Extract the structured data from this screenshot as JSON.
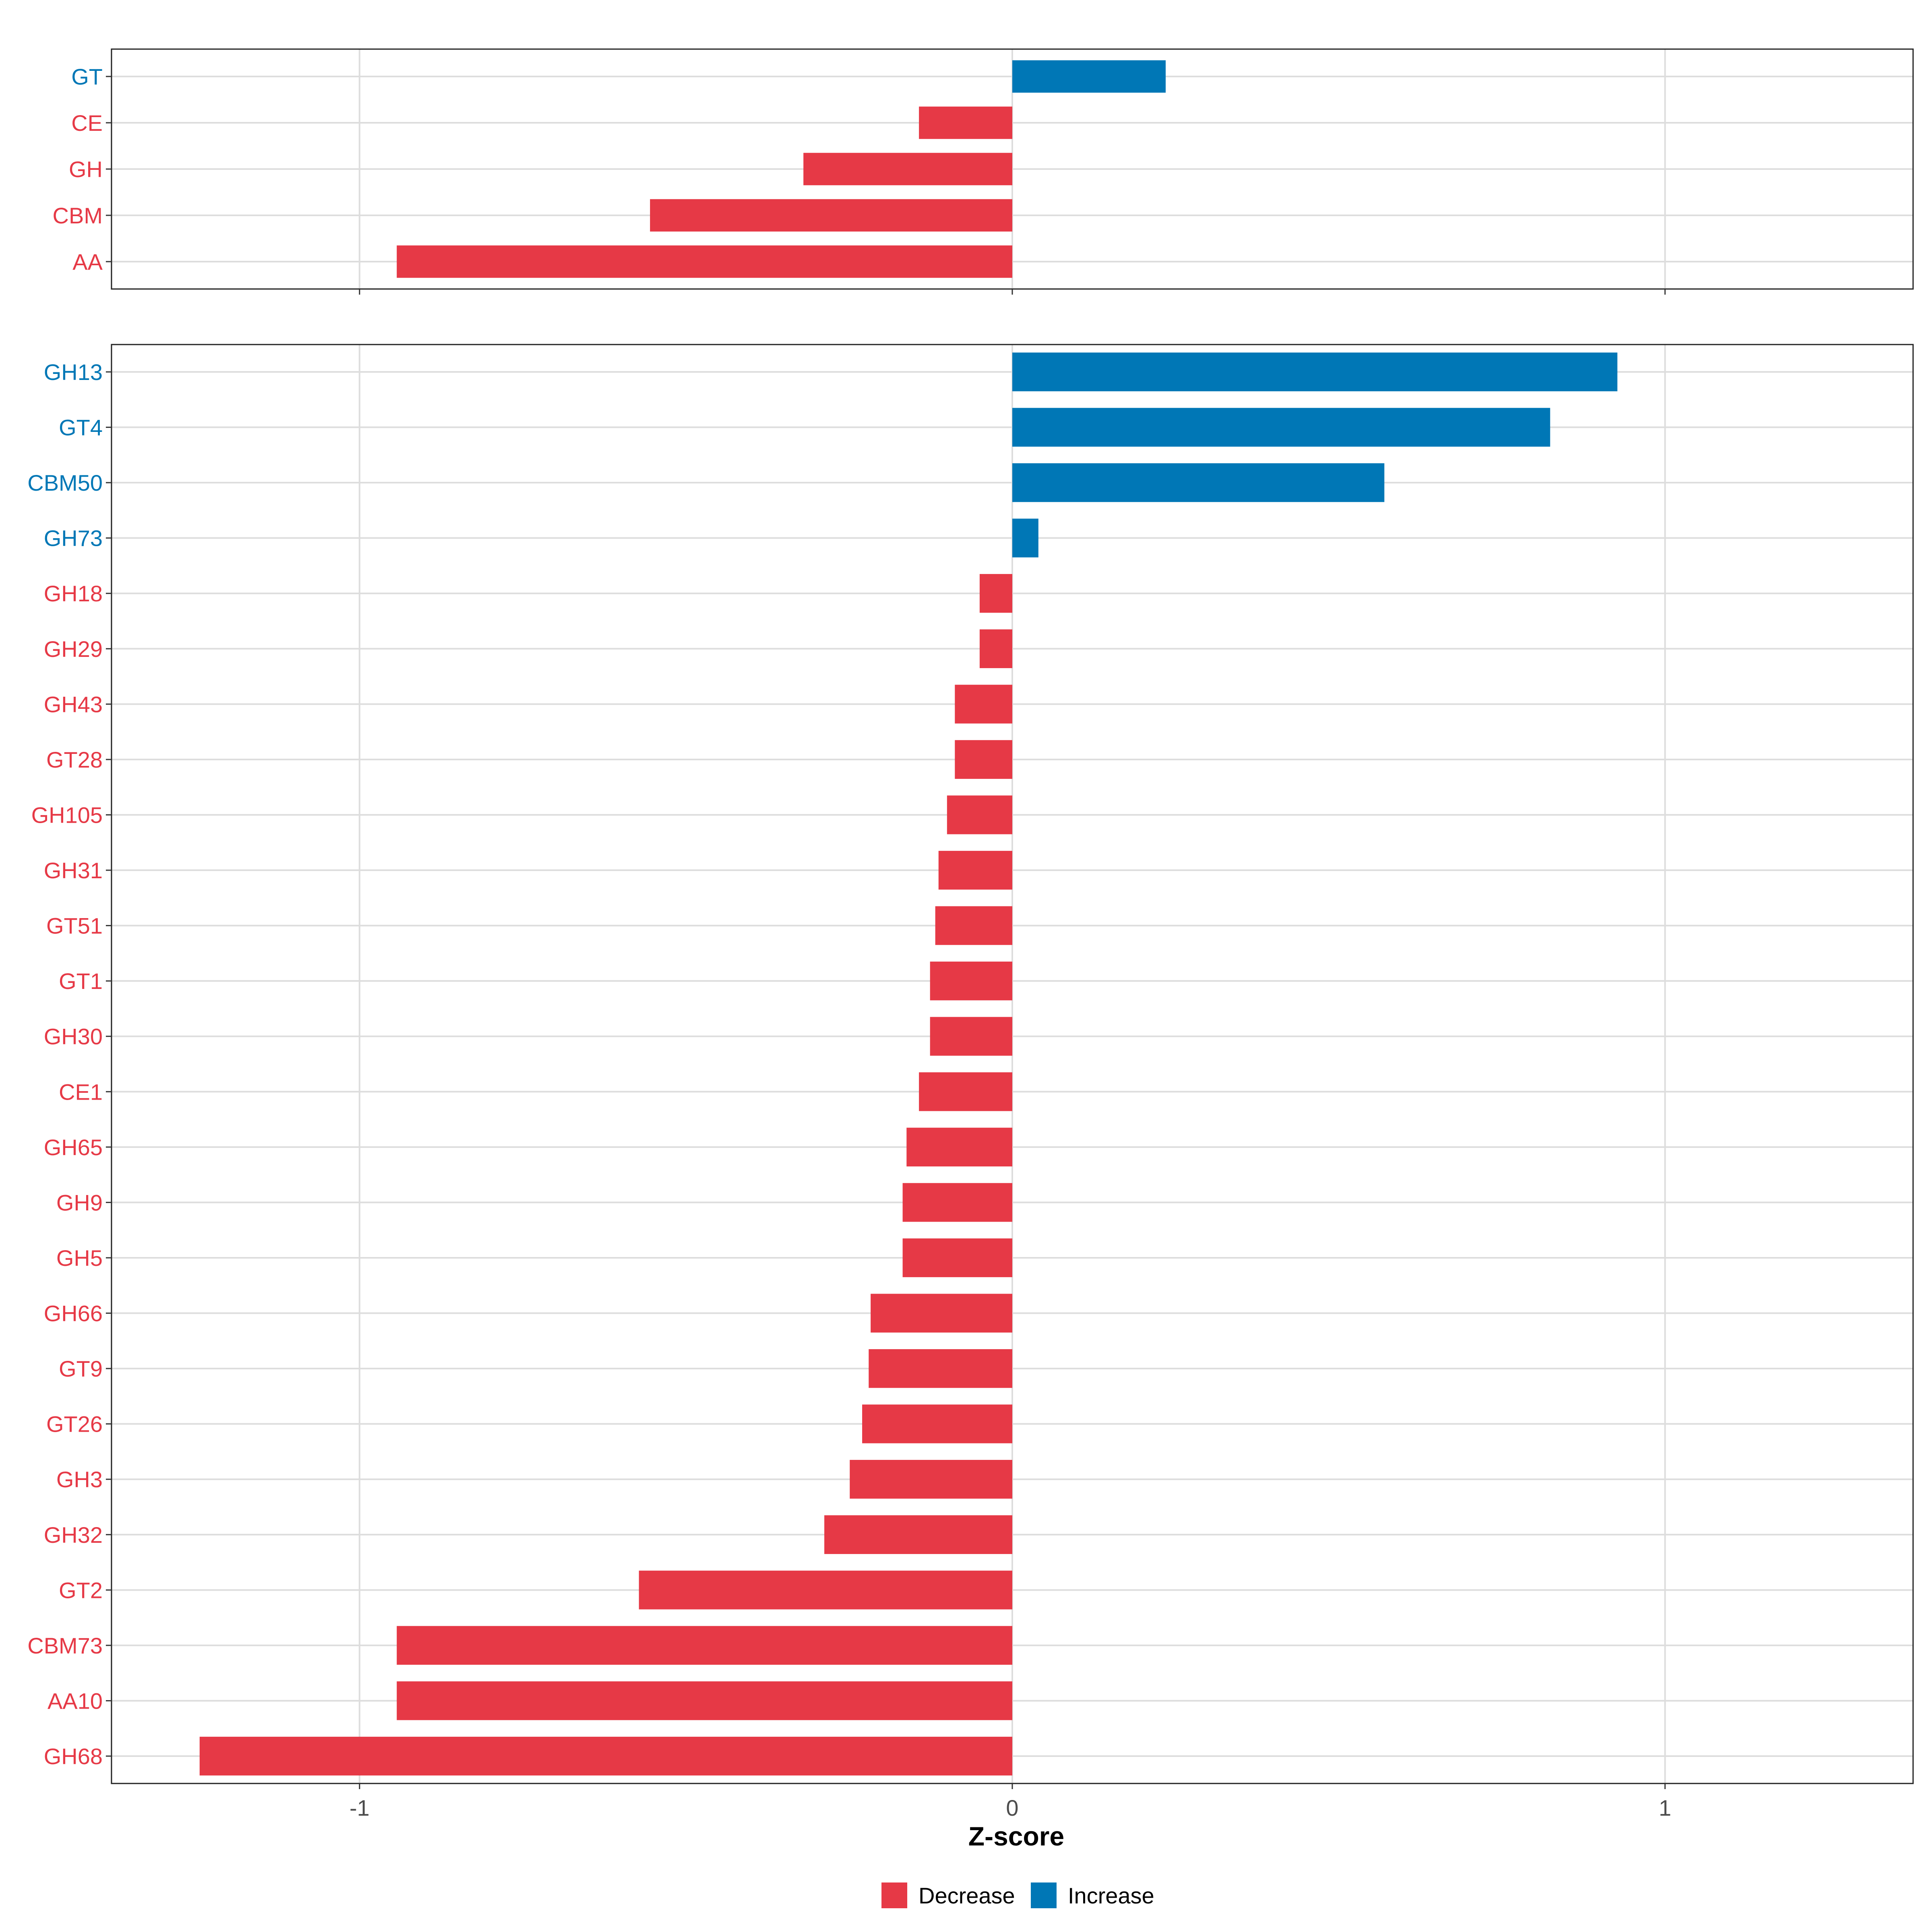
{
  "colors": {
    "decrease": "#E63946",
    "increase": "#0077B6"
  },
  "chart_data": [
    {
      "type": "bar",
      "orientation": "horizontal",
      "categories": [
        "GT",
        "CE",
        "GH",
        "CBM",
        "AA"
      ],
      "values": [
        0.235,
        -0.143,
        -0.32,
        -0.555,
        -0.943
      ],
      "xlim": [
        -1.38,
        1.38
      ],
      "grid": true
    },
    {
      "type": "bar",
      "orientation": "horizontal",
      "categories": [
        "GH13",
        "GT4",
        "CBM50",
        "GH73",
        "GH18",
        "GH29",
        "GH43",
        "GT28",
        "GH105",
        "GH31",
        "GT51",
        "GT1",
        "GH30",
        "CE1",
        "GH65",
        "GH9",
        "GH5",
        "GH66",
        "GT9",
        "GT26",
        "GH3",
        "GH32",
        "GT2",
        "CBM73",
        "AA10",
        "GH68"
      ],
      "values": [
        0.927,
        0.824,
        0.57,
        0.04,
        -0.05,
        -0.05,
        -0.088,
        -0.088,
        -0.1,
        -0.113,
        -0.118,
        -0.126,
        -0.126,
        -0.143,
        -0.162,
        -0.168,
        -0.168,
        -0.217,
        -0.22,
        -0.23,
        -0.249,
        -0.288,
        -0.572,
        -0.943,
        -0.943,
        -1.245
      ],
      "xlim": [
        -1.38,
        1.38
      ],
      "xticks": [
        -1,
        0,
        1
      ],
      "xticklabels": [
        "-1",
        "0",
        "1"
      ],
      "xlabel": "Z-score",
      "grid": true
    }
  ],
  "legend": {
    "placement": "bottom",
    "items": [
      {
        "label": "Decrease",
        "key": "decrease"
      },
      {
        "label": "Increase",
        "key": "increase"
      }
    ]
  }
}
